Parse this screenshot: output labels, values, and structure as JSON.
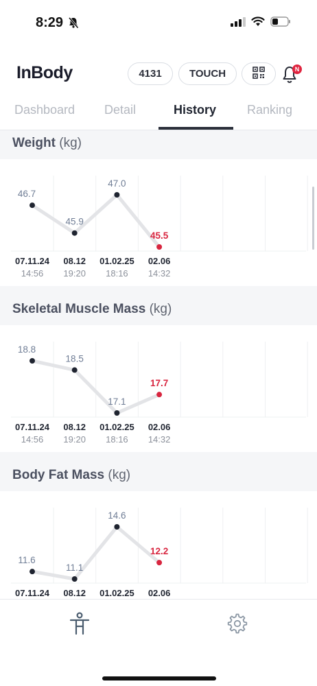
{
  "status_bar": {
    "time": "8:29"
  },
  "header": {
    "logo": "InBody",
    "user_id": "4131",
    "touch_label": "TOUCH",
    "notification_badge": "N"
  },
  "tabs": [
    {
      "label": "Dashboard",
      "active": false
    },
    {
      "label": "Detail",
      "active": false
    },
    {
      "label": "History",
      "active": true
    },
    {
      "label": "Ranking",
      "active": false
    }
  ],
  "colors": {
    "accent": "#d8253f",
    "point": "#1f2430",
    "line": "#e3e4e7",
    "value_text": "#6f7d95"
  },
  "sections": [
    {
      "title": "Weight",
      "unit": "(kg)"
    },
    {
      "title": "Skeletal Muscle Mass",
      "unit": "(kg)"
    },
    {
      "title": "Body Fat Mass",
      "unit": "(kg)"
    }
  ],
  "chart_data": [
    {
      "type": "line",
      "title": "Weight",
      "unit": "kg",
      "categories": [
        "07.11.24",
        "08.12",
        "01.02.25",
        "02.06"
      ],
      "times": [
        "14:56",
        "19:20",
        "18:16",
        "14:32"
      ],
      "series": [
        {
          "values": [
            46.7,
            45.9,
            47.0,
            45.5
          ]
        }
      ],
      "highlight_last": true
    },
    {
      "type": "line",
      "title": "Skeletal Muscle Mass",
      "unit": "kg",
      "categories": [
        "07.11.24",
        "08.12",
        "01.02.25",
        "02.06"
      ],
      "times": [
        "14:56",
        "19:20",
        "18:16",
        "14:32"
      ],
      "series": [
        {
          "values": [
            18.8,
            18.5,
            17.1,
            17.7
          ]
        }
      ],
      "highlight_last": true
    },
    {
      "type": "line",
      "title": "Body Fat Mass",
      "unit": "kg",
      "categories": [
        "07.11.24",
        "08.12",
        "01.02.25",
        "02.06"
      ],
      "times": [],
      "series": [
        {
          "values": [
            11.6,
            11.1,
            14.6,
            12.2
          ]
        }
      ],
      "highlight_last": true
    }
  ],
  "bottom_nav": [
    {
      "icon": "body-icon"
    },
    {
      "icon": "gear-icon"
    }
  ]
}
